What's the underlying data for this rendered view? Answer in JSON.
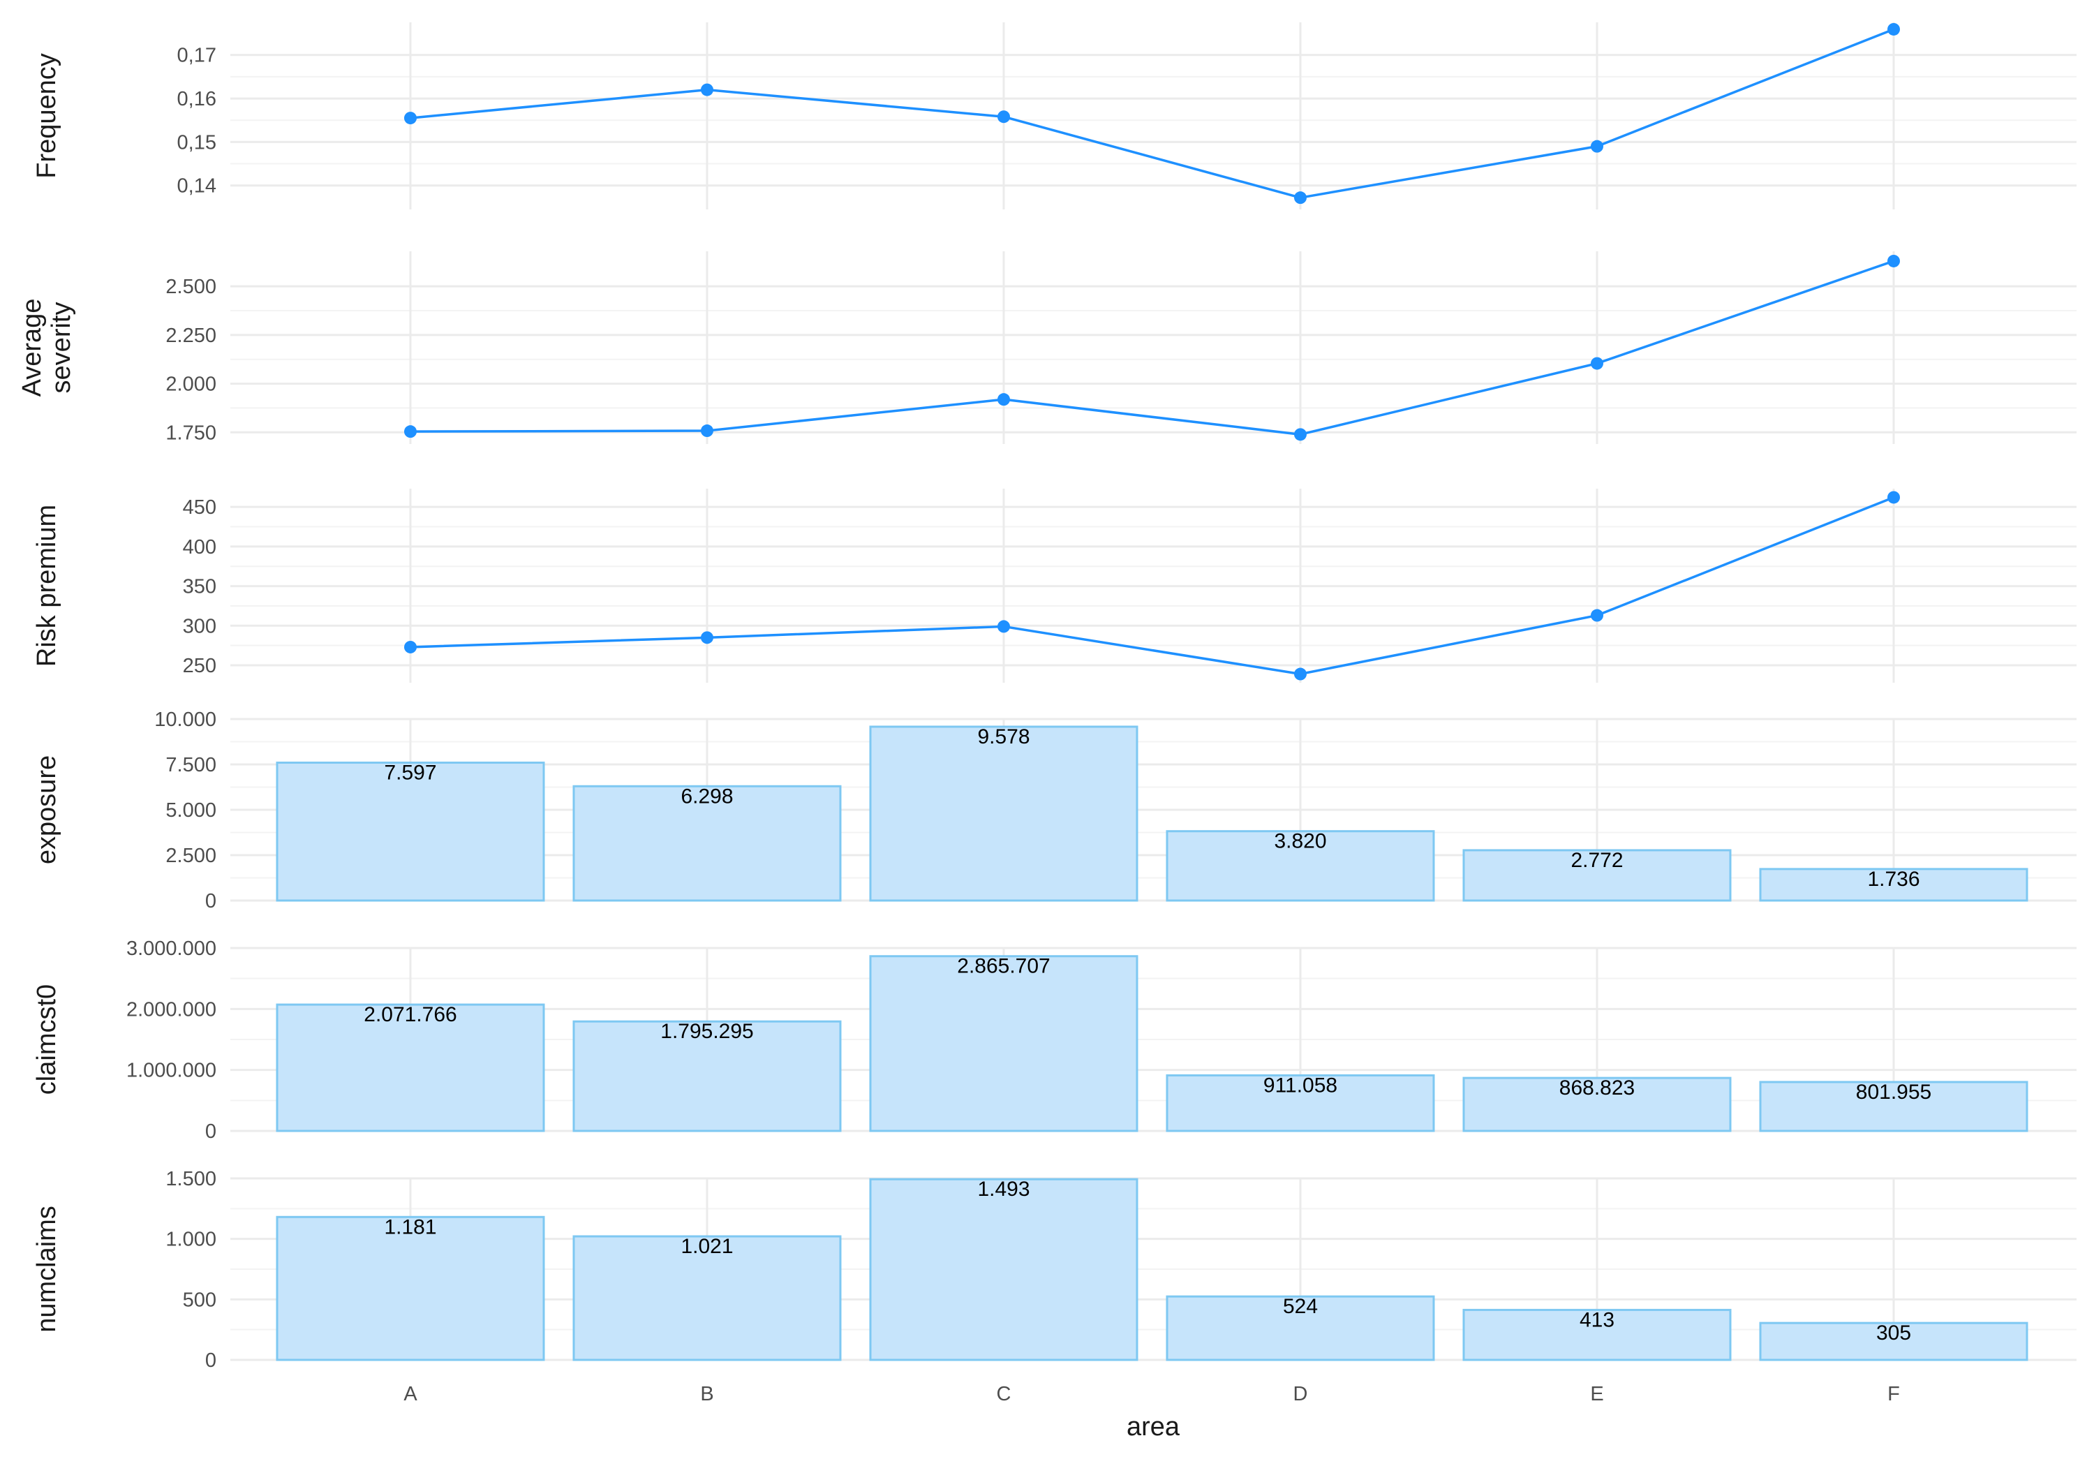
{
  "chart_data": {
    "type": "multi-panel",
    "x_axis_label": "area",
    "categories": [
      "A",
      "B",
      "C",
      "D",
      "E",
      "F"
    ],
    "grid": true,
    "colors": {
      "line": "#1e90ff",
      "bar_fill": "#c6e4fb",
      "bar_stroke": "#7ec8f2",
      "grid": "#ebebeb",
      "grid_minor": "#f3f3f3"
    },
    "panels": [
      {
        "ylabel_lines": [
          "Frequency"
        ],
        "type": "line",
        "values": [
          0.1555,
          0.162,
          0.1558,
          0.1372,
          0.149,
          0.1759
        ],
        "ylim": [
          0.1345,
          0.1775
        ],
        "ticks": [
          0.14,
          0.15,
          0.16,
          0.17
        ],
        "tick_labels": [
          "0,14",
          "0,15",
          "0,16",
          "0,17"
        ]
      },
      {
        "ylabel_lines": [
          "Average",
          "severity"
        ],
        "type": "line",
        "values": [
          1754,
          1758,
          1919,
          1739,
          2104,
          2630
        ],
        "ylim": [
          1690,
          2680
        ],
        "ticks": [
          1750,
          2000,
          2250,
          2500
        ],
        "tick_labels": [
          "1.750",
          "2.000",
          "2.250",
          "2.500"
        ]
      },
      {
        "ylabel_lines": [
          "Risk premium"
        ],
        "type": "line",
        "values": [
          273,
          285,
          299,
          239,
          313,
          462
        ],
        "ylim": [
          228,
          473
        ],
        "ticks": [
          250,
          300,
          350,
          400,
          450
        ],
        "tick_labels": [
          "250",
          "300",
          "350",
          "400",
          "450"
        ]
      },
      {
        "ylabel_lines": [
          "exposure"
        ],
        "type": "bar",
        "values": [
          7597,
          6298,
          9578,
          3820,
          2772,
          1736
        ],
        "value_labels": [
          "7.597",
          "6.298",
          "9.578",
          "3.820",
          "2.772",
          "1.736"
        ],
        "ylim": [
          0,
          10000
        ],
        "ticks": [
          0,
          2500,
          5000,
          7500,
          10000
        ],
        "tick_labels": [
          "0",
          "2.500",
          "5.000",
          "7.500",
          "10.000"
        ]
      },
      {
        "ylabel_lines": [
          "claimcst0"
        ],
        "type": "bar",
        "values": [
          2071766,
          1795295,
          2865707,
          911058,
          868823,
          801955
        ],
        "value_labels": [
          "2.071.766",
          "1.795.295",
          "2.865.707",
          "911.058",
          "868.823",
          "801.955"
        ],
        "ylim": [
          0,
          3000000
        ],
        "ticks": [
          0,
          1000000,
          2000000,
          3000000
        ],
        "tick_labels": [
          "0",
          "1.000.000",
          "2.000.000",
          "3.000.000"
        ]
      },
      {
        "ylabel_lines": [
          "numclaims"
        ],
        "type": "bar",
        "values": [
          1181,
          1021,
          1493,
          524,
          413,
          305
        ],
        "value_labels": [
          "1.181",
          "1.021",
          "1.493",
          "524",
          "413",
          "305"
        ],
        "ylim": [
          0,
          1500
        ],
        "ticks": [
          0,
          500,
          1000,
          1500
        ],
        "tick_labels": [
          "0",
          "500",
          "1.000",
          "1.500"
        ]
      }
    ]
  }
}
